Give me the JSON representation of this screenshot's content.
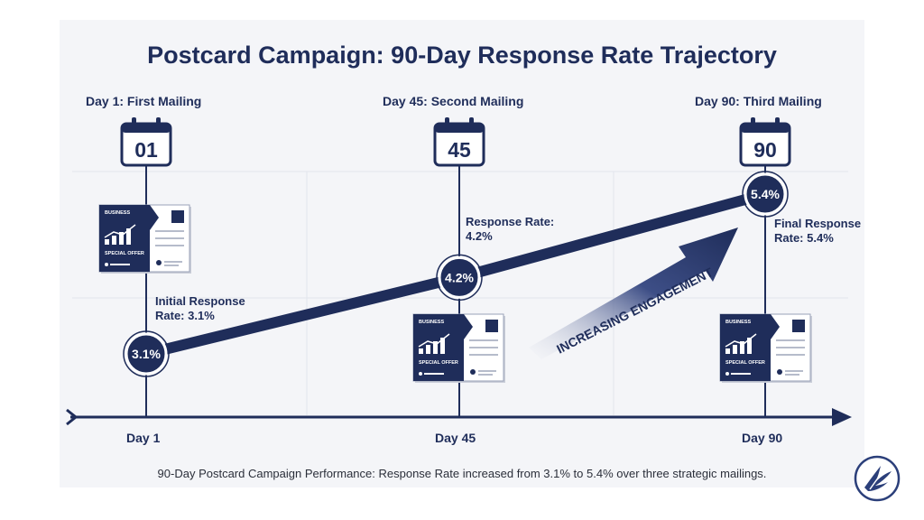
{
  "title": "Postcard Campaign: 90-Day Response Rate Trajectory",
  "caption": "90-Day Postcard Campaign Performance: Response Rate increased from 3.1% to 5.4% over three strategic mailings.",
  "arrow_label": "INCREASING ENGAGEMENT",
  "postcard": {
    "business": "BUSINESS",
    "offer": "SPECIAL OFFER"
  },
  "colors": {
    "navy": "#1f2d5a",
    "panel": "#f4f5f8",
    "grid": "#e2e5ec"
  },
  "mailings": [
    {
      "title": "Day 1: First Mailing",
      "calendar": "01",
      "annotation_line1": "Initial Response",
      "annotation_line2": "Rate: 3.1%"
    },
    {
      "title": "Day 45: Second Mailing",
      "calendar": "45",
      "annotation_line1": "Response Rate:",
      "annotation_line2": "4.2%"
    },
    {
      "title": "Day 90: Third Mailing",
      "calendar": "90",
      "annotation_line1": "Final Response",
      "annotation_line2": "Rate: 5.4%"
    }
  ],
  "chart_data": {
    "type": "line",
    "title": "Postcard Campaign: 90-Day Response Rate Trajectory",
    "xlabel": "",
    "ylabel": "",
    "categories": [
      "Day 1",
      "Day 45",
      "Day 90"
    ],
    "series": [
      {
        "values": [
          3.1,
          4.2,
          5.4
        ],
        "labels": [
          "3.1%",
          "4.2%",
          "5.4%"
        ]
      }
    ],
    "grid": true
  }
}
